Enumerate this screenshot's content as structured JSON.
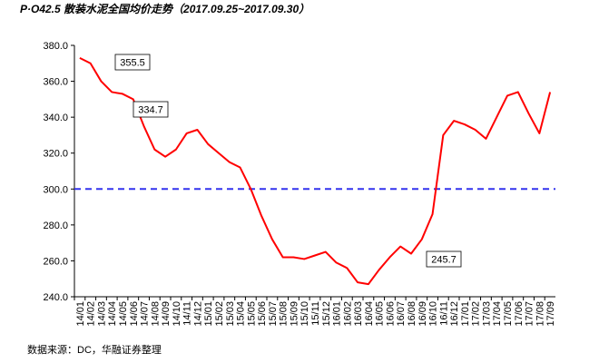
{
  "chart_data": {
    "type": "line",
    "title": "P·O42.5 散装水泥全国均价走势（2017.09.25~2017.09.30）",
    "source": "数据来源：DC，华融证券整理",
    "categories": [
      "14/01",
      "14/02",
      "14/03",
      "14/04",
      "14/05",
      "14/06",
      "14/07",
      "14/08",
      "14/09",
      "14/10",
      "14/11",
      "14/12",
      "15/01",
      "15/02",
      "15/03",
      "15/04",
      "15/05",
      "15/06",
      "15/07",
      "15/08",
      "15/09",
      "15/10",
      "15/11",
      "15/12",
      "16/01",
      "16/02",
      "16/03",
      "16/04",
      "16/05",
      "16/06",
      "16/07",
      "16/08",
      "16/09",
      "16/10",
      "16/11",
      "16/12",
      "17/01",
      "17/02",
      "17/03",
      "17/04",
      "17/05",
      "17/06",
      "17/07",
      "17/08",
      "17/09"
    ],
    "series": [
      {
        "name": "P·O42.5",
        "color": "#ff0000",
        "values": [
          373,
          370,
          360,
          354,
          353,
          350,
          335,
          322,
          318,
          322,
          331,
          333,
          325,
          320,
          315,
          312,
          300,
          285,
          272,
          262,
          262,
          261,
          263,
          265,
          259,
          256,
          248,
          247,
          255,
          262,
          268,
          264,
          272,
          286,
          330,
          338,
          336,
          333,
          328,
          340,
          352,
          354,
          342,
          331,
          354
        ]
      }
    ],
    "ylim": [
      240,
      380
    ],
    "yticks": [
      {
        "value": 240,
        "label": "240.0"
      },
      {
        "value": 260,
        "label": "260.0"
      },
      {
        "value": 280,
        "label": "280.0"
      },
      {
        "value": 300,
        "label": "300.0"
      },
      {
        "value": 320,
        "label": "320.0"
      },
      {
        "value": 340,
        "label": "340.0"
      },
      {
        "value": 360,
        "label": "360.0"
      },
      {
        "value": 380,
        "label": "380.0"
      }
    ],
    "reference_line": {
      "value": 300,
      "color": "#3333ee"
    },
    "annotations": [
      "355.5",
      "334.7",
      "245.7"
    ]
  }
}
